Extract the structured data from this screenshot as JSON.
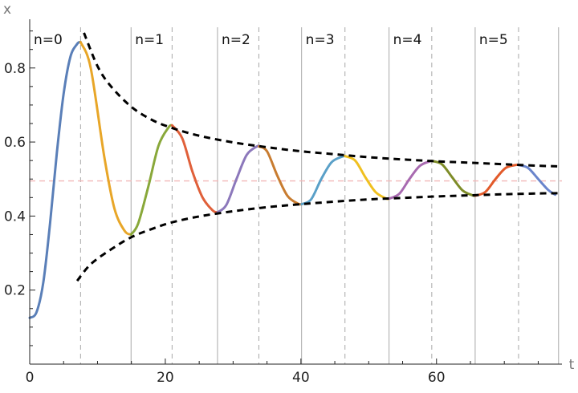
{
  "chart_data": {
    "type": "line",
    "title": "",
    "xlabel": "t",
    "ylabel": "x",
    "xlim": [
      0,
      78.5
    ],
    "ylim": [
      0.0,
      0.91
    ],
    "x_ticks": [
      0,
      20,
      40,
      60
    ],
    "y_ticks": [
      0.2,
      0.4,
      0.6,
      0.8
    ],
    "tick_labels": {
      "x": [
        "0",
        "20",
        "40",
        "60"
      ],
      "y": [
        "0.2",
        "0.4",
        "0.6",
        "0.8"
      ]
    },
    "grid": false,
    "legend": "none",
    "period_boundaries": [
      0,
      14.95,
      27.7,
      40.1,
      53.0,
      65.7,
      78.0
    ],
    "peak_times": [
      7.5,
      21.0,
      33.8,
      46.5,
      59.3,
      72.1
    ],
    "period_labels": [
      "n=0",
      "n=1",
      "n=2",
      "n=3",
      "n=4",
      "n=5"
    ],
    "equilibrium": 0.495,
    "upper_envelope": {
      "x": [
        8,
        10,
        12,
        15,
        18,
        21,
        25,
        30,
        35,
        40,
        45,
        50,
        55,
        60,
        65,
        70,
        75,
        78.5
      ],
      "y": [
        0.895,
        0.805,
        0.75,
        0.695,
        0.66,
        0.638,
        0.617,
        0.599,
        0.586,
        0.575,
        0.567,
        0.559,
        0.553,
        0.548,
        0.544,
        0.54,
        0.536,
        0.534
      ]
    },
    "lower_envelope": {
      "x": [
        7,
        9,
        12,
        15,
        18,
        21,
        25,
        30,
        35,
        40,
        45,
        50,
        55,
        60,
        65,
        70,
        75,
        78.5
      ],
      "y": [
        0.225,
        0.27,
        0.31,
        0.343,
        0.365,
        0.383,
        0.399,
        0.413,
        0.424,
        0.432,
        0.439,
        0.445,
        0.449,
        0.453,
        0.456,
        0.459,
        0.461,
        0.462
      ]
    },
    "series": [
      {
        "color": "#5a7fb8",
        "x": [
          0,
          1,
          2,
          3,
          4,
          5,
          6,
          7,
          7.5
        ],
        "y": [
          0.125,
          0.14,
          0.22,
          0.38,
          0.57,
          0.73,
          0.83,
          0.865,
          0.87
        ]
      },
      {
        "color": "#e8a628",
        "x": [
          7.5,
          9,
          11,
          12.5,
          14,
          14.95
        ],
        "y": [
          0.87,
          0.8,
          0.56,
          0.42,
          0.36,
          0.35
        ]
      },
      {
        "color": "#89a83a",
        "x": [
          14.95,
          16,
          17.5,
          19,
          20.5,
          21
        ],
        "y": [
          0.35,
          0.38,
          0.48,
          0.59,
          0.64,
          0.645
        ]
      },
      {
        "color": "#e0603a",
        "x": [
          21,
          22.5,
          24,
          25.5,
          27,
          27.7
        ],
        "y": [
          0.645,
          0.61,
          0.52,
          0.45,
          0.415,
          0.41
        ]
      },
      {
        "color": "#8c78bb",
        "x": [
          27.7,
          29,
          30.5,
          32,
          33.5,
          33.8
        ],
        "y": [
          0.41,
          0.43,
          0.5,
          0.565,
          0.588,
          0.588
        ]
      },
      {
        "color": "#c87c30",
        "x": [
          33.8,
          35,
          36.5,
          38,
          39.5,
          40.1
        ],
        "y": [
          0.588,
          0.575,
          0.51,
          0.455,
          0.434,
          0.432
        ]
      },
      {
        "color": "#5aa0c8",
        "x": [
          40.1,
          41.5,
          43,
          44.5,
          46,
          46.5
        ],
        "y": [
          0.432,
          0.445,
          0.5,
          0.545,
          0.56,
          0.562
        ]
      },
      {
        "color": "#f0c020",
        "x": [
          46.5,
          48,
          49.5,
          51,
          52.5,
          53
        ],
        "y": [
          0.562,
          0.55,
          0.505,
          0.465,
          0.448,
          0.447
        ]
      },
      {
        "color": "#a86ab0",
        "x": [
          53,
          54.5,
          56,
          57.5,
          59,
          59.3
        ],
        "y": [
          0.447,
          0.46,
          0.5,
          0.535,
          0.548,
          0.549
        ]
      },
      {
        "color": "#7e8c28",
        "x": [
          59.3,
          60.8,
          62.3,
          63.8,
          65.3,
          65.7
        ],
        "y": [
          0.549,
          0.54,
          0.505,
          0.47,
          0.456,
          0.455
        ]
      },
      {
        "color": "#e25a2a",
        "x": [
          65.7,
          67.2,
          68.7,
          70.2,
          71.7,
          72.1
        ],
        "y": [
          0.455,
          0.465,
          0.5,
          0.53,
          0.538,
          0.538
        ]
      },
      {
        "color": "#6a85cc",
        "x": [
          72.1,
          73.5,
          75,
          76.5,
          77.5
        ],
        "y": [
          0.538,
          0.53,
          0.5,
          0.47,
          0.458
        ]
      }
    ],
    "colors": {
      "axis": "#222222",
      "period_line": "#a8a8a8",
      "peak_line": "#a8a8a8",
      "equilibrium": "#f2b8b8",
      "envelope": "#000000"
    }
  }
}
